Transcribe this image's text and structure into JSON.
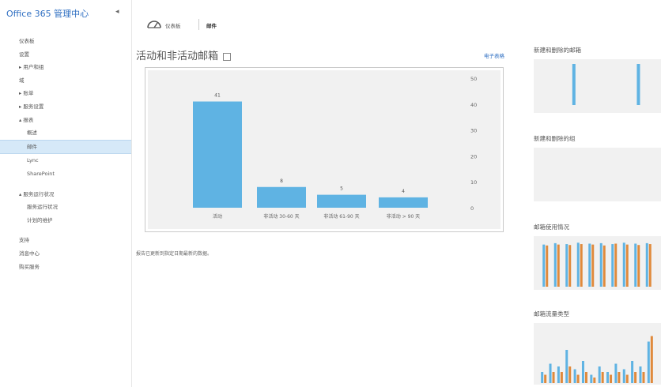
{
  "app": {
    "title": "Office 365 管理中心"
  },
  "sidebar": {
    "items": [
      {
        "label": "仪表板",
        "level": 0,
        "selected": false
      },
      {
        "label": "设置",
        "level": 0,
        "selected": false
      },
      {
        "label": "▸ 用户和组",
        "level": 0,
        "selected": false
      },
      {
        "label": "域",
        "level": 0,
        "selected": false
      },
      {
        "label": "▸ 账单",
        "level": 0,
        "selected": false
      },
      {
        "label": "▸ 服务设置",
        "level": 0,
        "selected": false
      },
      {
        "label": "▴ 报表",
        "level": 0,
        "selected": false
      },
      {
        "label": "概述",
        "level": 1,
        "selected": false
      },
      {
        "label": "邮件",
        "level": 1,
        "selected": true
      },
      {
        "label": "Lync",
        "level": 1,
        "selected": false
      },
      {
        "label": "SharePoint",
        "level": 1,
        "selected": false
      },
      {
        "label": "▴ 服务运行状况",
        "level": 0,
        "selected": false,
        "gap_before": true
      },
      {
        "label": "服务运行状况",
        "level": 1,
        "selected": false
      },
      {
        "label": "计划的维护",
        "level": 1,
        "selected": false
      },
      {
        "label": "支持",
        "level": 0,
        "selected": false,
        "gap_before": true
      },
      {
        "label": "消息中心",
        "level": 0,
        "selected": false
      },
      {
        "label": "购买服务",
        "level": 0,
        "selected": false
      }
    ]
  },
  "breadcrumb": {
    "dashboard": "仪表板",
    "current": "邮件"
  },
  "main": {
    "title": "活动和非活动邮箱",
    "export_label": "电子表格",
    "footnote": "报告已更新到指定日期最新的数据。",
    "dashboard_icon": "dashboard-icon"
  },
  "chart_data": {
    "type": "bar",
    "categories": [
      "活动",
      "非活动 30-60 天",
      "非活动 61-90 天",
      "非活动 > 90 天"
    ],
    "values": [
      41,
      8,
      5,
      4
    ],
    "data_labels": [
      "41",
      "8",
      "5",
      "4"
    ],
    "ylim": [
      0,
      50
    ],
    "yticks": [
      0,
      10,
      20,
      30,
      40,
      50
    ],
    "y_axis_side": "right",
    "bar_color": "#5fb3e3",
    "title": "",
    "xlabel": "",
    "ylabel": ""
  },
  "right_panels": [
    {
      "title": "新建和删除的邮箱",
      "chart_data": {
        "type": "bar",
        "series": [
          {
            "values": [
              0,
              0,
              0,
              0,
              0,
              1,
              0,
              0,
              0,
              0,
              0,
              0,
              0,
              0,
              0,
              0,
              1,
              0,
              0
            ]
          }
        ],
        "bar_color": "#5fb3e3"
      }
    },
    {
      "title": "新建和删除的组",
      "chart_data": {
        "type": "bar",
        "series": []
      }
    },
    {
      "title": "邮箱使用情况",
      "chart_data": {
        "type": "bar",
        "series": [
          {
            "values": [
              0.92,
              0.95,
              0.93,
              0.96,
              0.94,
              0.95,
              0.93,
              0.96,
              0.94,
              0.95
            ]
          },
          {
            "values": [
              0.9,
              0.92,
              0.91,
              0.93,
              0.92,
              0.9,
              0.94,
              0.92,
              0.91,
              0.93
            ]
          }
        ],
        "colors": [
          "#5fb3e3",
          "#e08a3c"
        ]
      }
    },
    {
      "title": "邮箱流量类型",
      "chart_data": {
        "type": "bar",
        "series": [
          {
            "values": [
              0.2,
              0.35,
              0.3,
              0.6,
              0.25,
              0.4,
              0.15,
              0.3,
              0.2,
              0.35,
              0.25,
              0.4,
              0.3,
              0.75
            ]
          },
          {
            "values": [
              0.15,
              0.2,
              0.2,
              0.3,
              0.15,
              0.2,
              0.1,
              0.2,
              0.15,
              0.2,
              0.15,
              0.2,
              0.2,
              0.85
            ]
          }
        ],
        "colors": [
          "#5fb3e3",
          "#e08a3c"
        ]
      }
    }
  ]
}
